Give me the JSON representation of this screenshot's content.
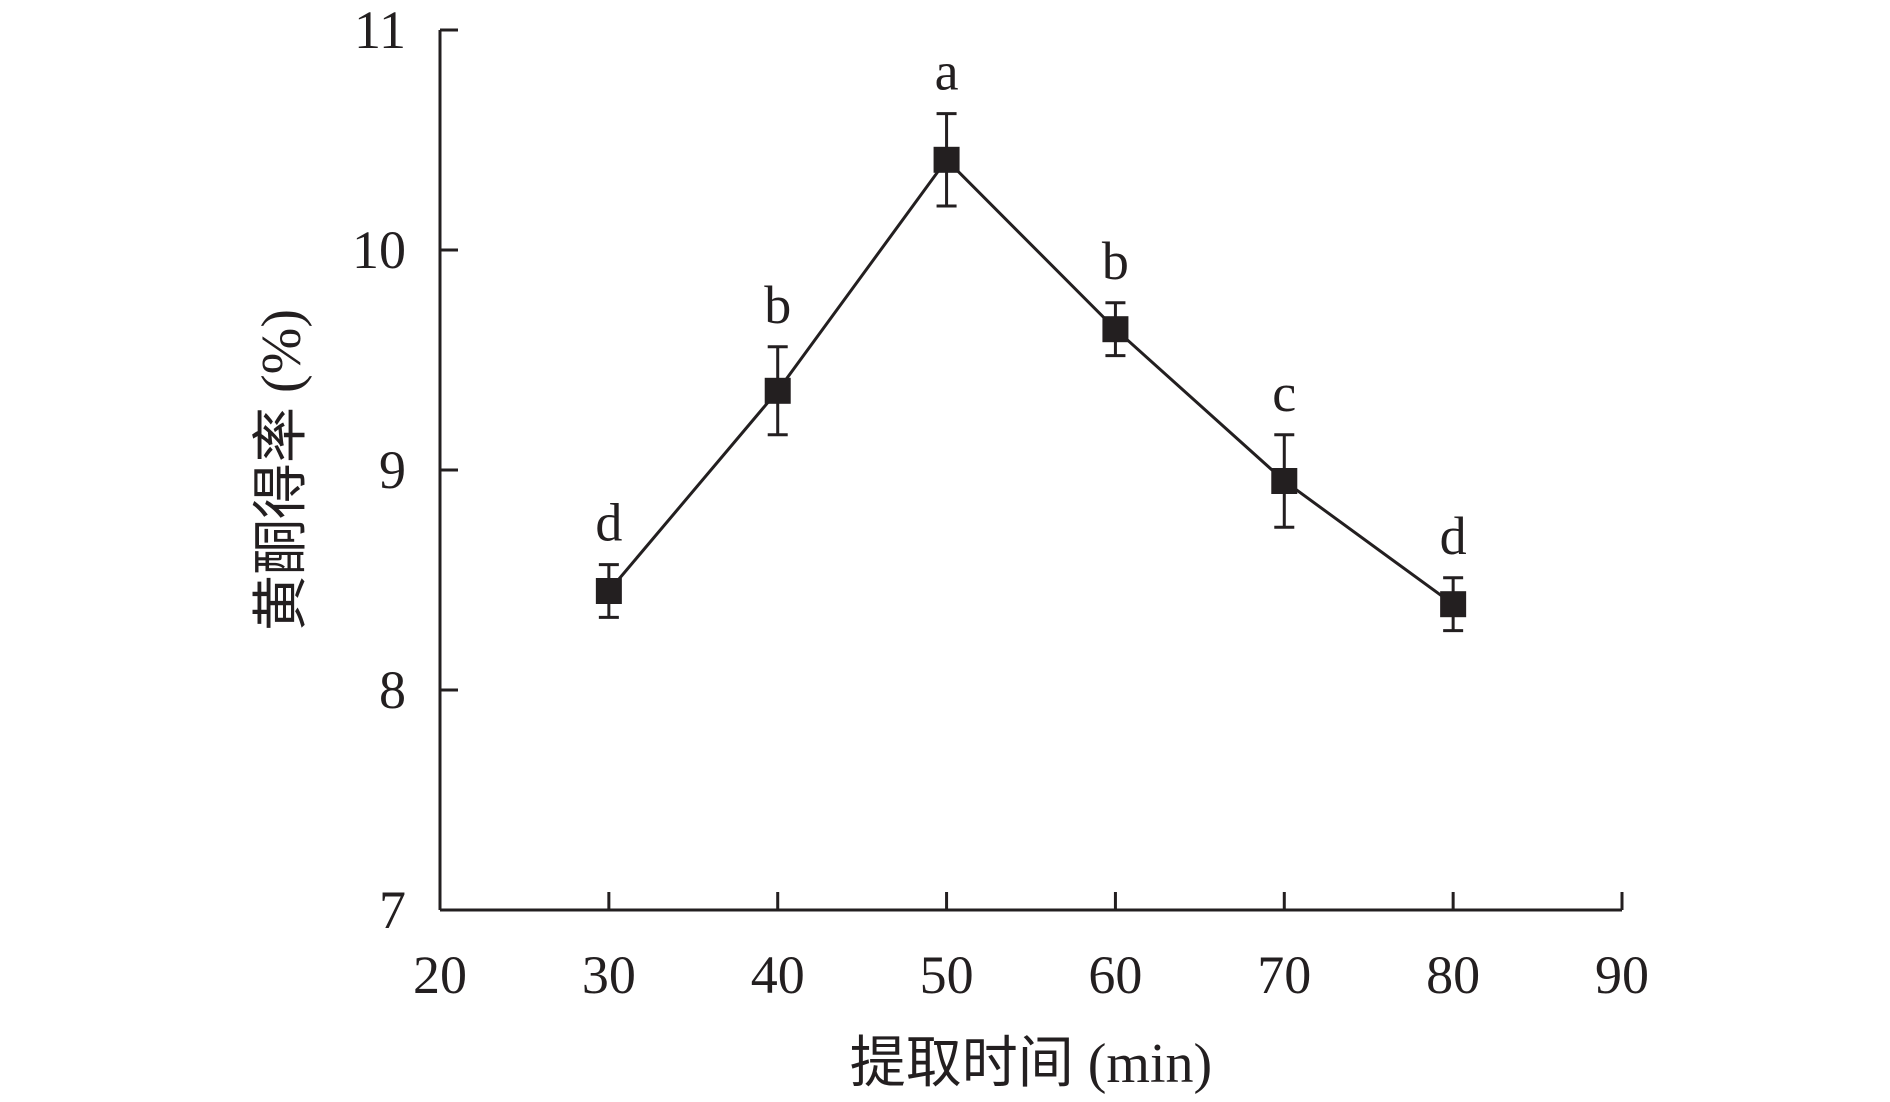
{
  "chart_data": {
    "type": "line",
    "xlabel": "提取时间 (min)",
    "ylabel": "黄酮得率 (%)",
    "xlim": [
      20,
      90
    ],
    "ylim": [
      7,
      11
    ],
    "xticks": [
      20,
      30,
      40,
      50,
      60,
      70,
      80,
      90
    ],
    "yticks": [
      7,
      8,
      9,
      10,
      11
    ],
    "grid": false,
    "series": [
      {
        "x": [
          30,
          40,
          50,
          60,
          70,
          80
        ],
        "y": [
          8.45,
          9.36,
          10.41,
          9.64,
          8.95,
          8.39
        ],
        "error": [
          0.12,
          0.2,
          0.21,
          0.12,
          0.21,
          0.12
        ],
        "marker": "square",
        "color": "#231f20"
      }
    ],
    "annotations": [
      "d",
      "b",
      "a",
      "b",
      "c",
      "d"
    ]
  }
}
